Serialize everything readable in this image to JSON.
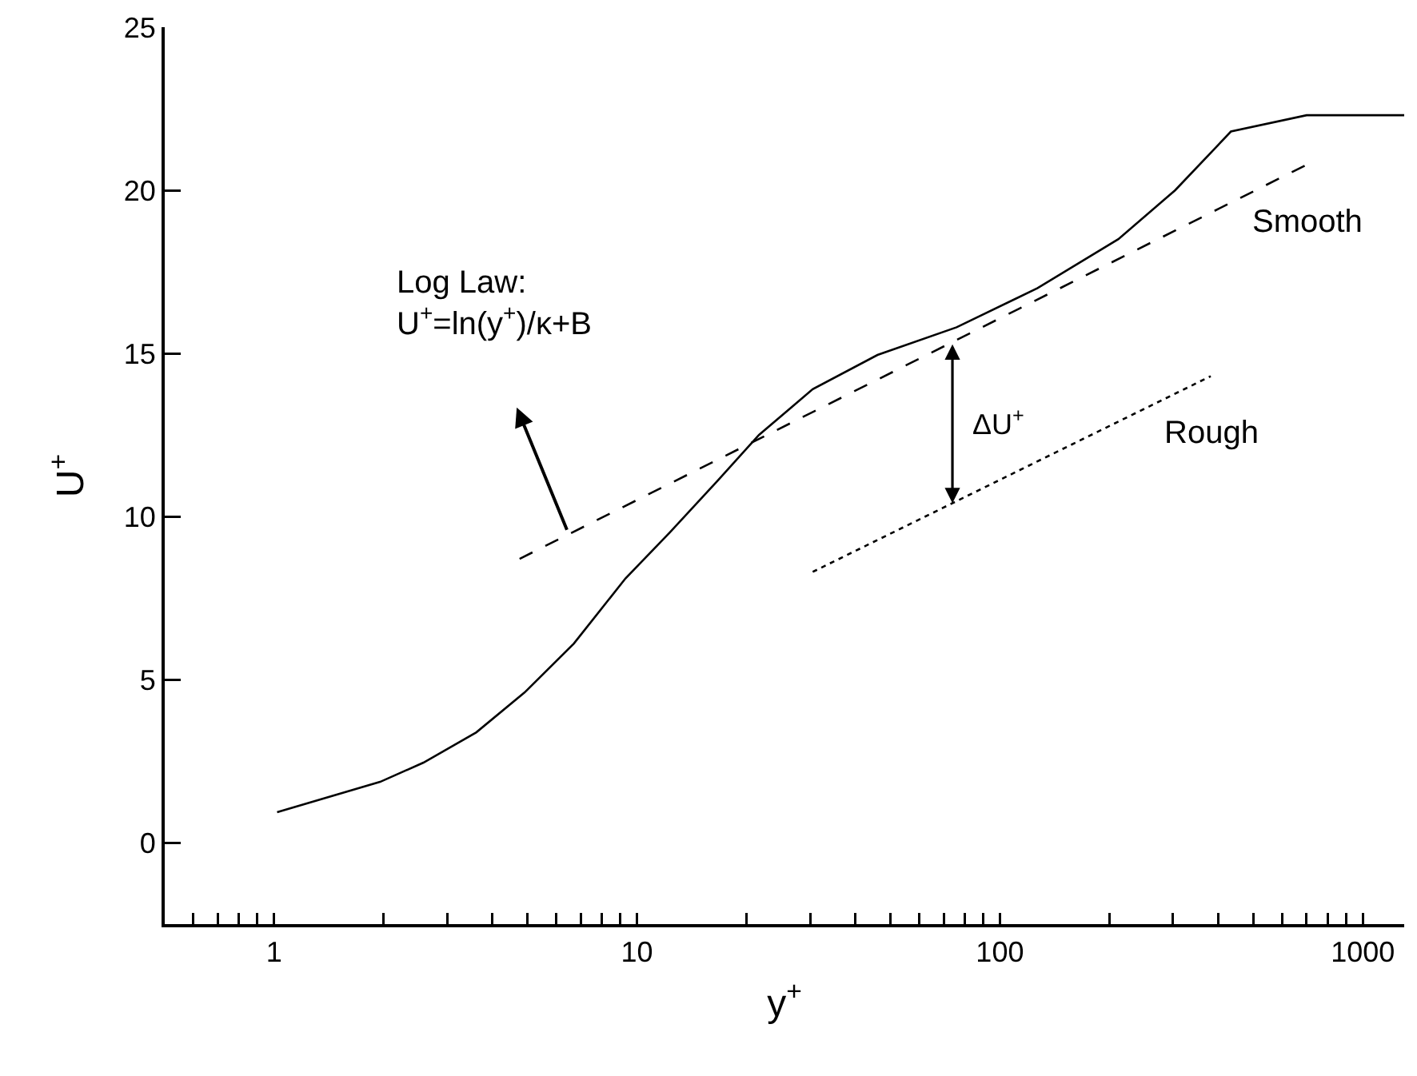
{
  "chart_data": {
    "type": "line",
    "xlabel": "y$^{+}$",
    "ylabel": "U$^{+}$",
    "log": "x",
    "xlim": [
      0.5,
      1300
    ],
    "ylim": [
      -2.5,
      25
    ],
    "xticks": [
      {
        "value": 0.6,
        "label": null
      },
      {
        "value": 0.7,
        "label": null
      },
      {
        "value": 0.8,
        "label": null
      },
      {
        "value": 0.9,
        "label": null
      },
      1,
      {
        "value": 2,
        "label": null
      },
      {
        "value": 3,
        "label": null
      },
      {
        "value": 4,
        "label": null
      },
      {
        "value": 5,
        "label": null
      },
      {
        "value": 6,
        "label": null
      },
      {
        "value": 7,
        "label": null
      },
      {
        "value": 8,
        "label": null
      },
      {
        "value": 9,
        "label": null
      },
      10,
      {
        "value": 20,
        "label": null
      },
      {
        "value": 30,
        "label": null
      },
      {
        "value": 40,
        "label": null
      },
      {
        "value": 50,
        "label": null
      },
      {
        "value": 60,
        "label": null
      },
      {
        "value": 70,
        "label": null
      },
      {
        "value": 80,
        "label": null
      },
      {
        "value": 90,
        "label": null
      },
      100,
      {
        "value": 200,
        "label": null
      },
      {
        "value": 300,
        "label": null
      },
      {
        "value": 400,
        "label": null
      },
      {
        "value": 500,
        "label": null
      },
      {
        "value": 600,
        "label": null
      },
      {
        "value": 700,
        "label": null
      },
      {
        "value": 800,
        "label": null
      },
      {
        "value": 900,
        "label": null
      },
      1000
    ],
    "yticks": [
      0,
      5,
      10,
      15,
      20,
      25
    ],
    "grid": false,
    "legend": false,
    "marker": "none",
    "series": [
      {
        "color": "#000000",
        "line_style": "solid",
        "x": [
          1.02,
          1.96,
          2.58,
          3.61,
          4.9,
          6.7,
          9.3,
          12.3,
          16.7,
          21.7,
          30.5,
          46,
          76,
          127,
          212,
          304,
          433,
          700,
          1300
        ],
        "values": [
          0.93,
          1.86,
          2.45,
          3.38,
          4.6,
          6.1,
          8.1,
          9.5,
          11.1,
          12.5,
          13.9,
          14.95,
          15.8,
          17.0,
          18.5,
          20.0,
          21.8,
          22.3,
          22.3
        ]
      },
      {
        "name": "Smooth",
        "color": "#000000",
        "line_style": "dashed",
        "x": [
          4.75,
          705
        ],
        "values": [
          8.7,
          20.8
        ]
      },
      {
        "name": "Rough",
        "color": "#000000",
        "line_style": "dotted",
        "x": [
          30.5,
          381
        ],
        "values": [
          8.3,
          14.3
        ]
      }
    ],
    "annotations": [
      "Log Law:\nU$^{+}$=ln(y$^{+}$)/κ+B",
      {
        "text": "ΔU$^{+}$",
        "x": 74,
        "y": 15.35
      }
    ]
  }
}
